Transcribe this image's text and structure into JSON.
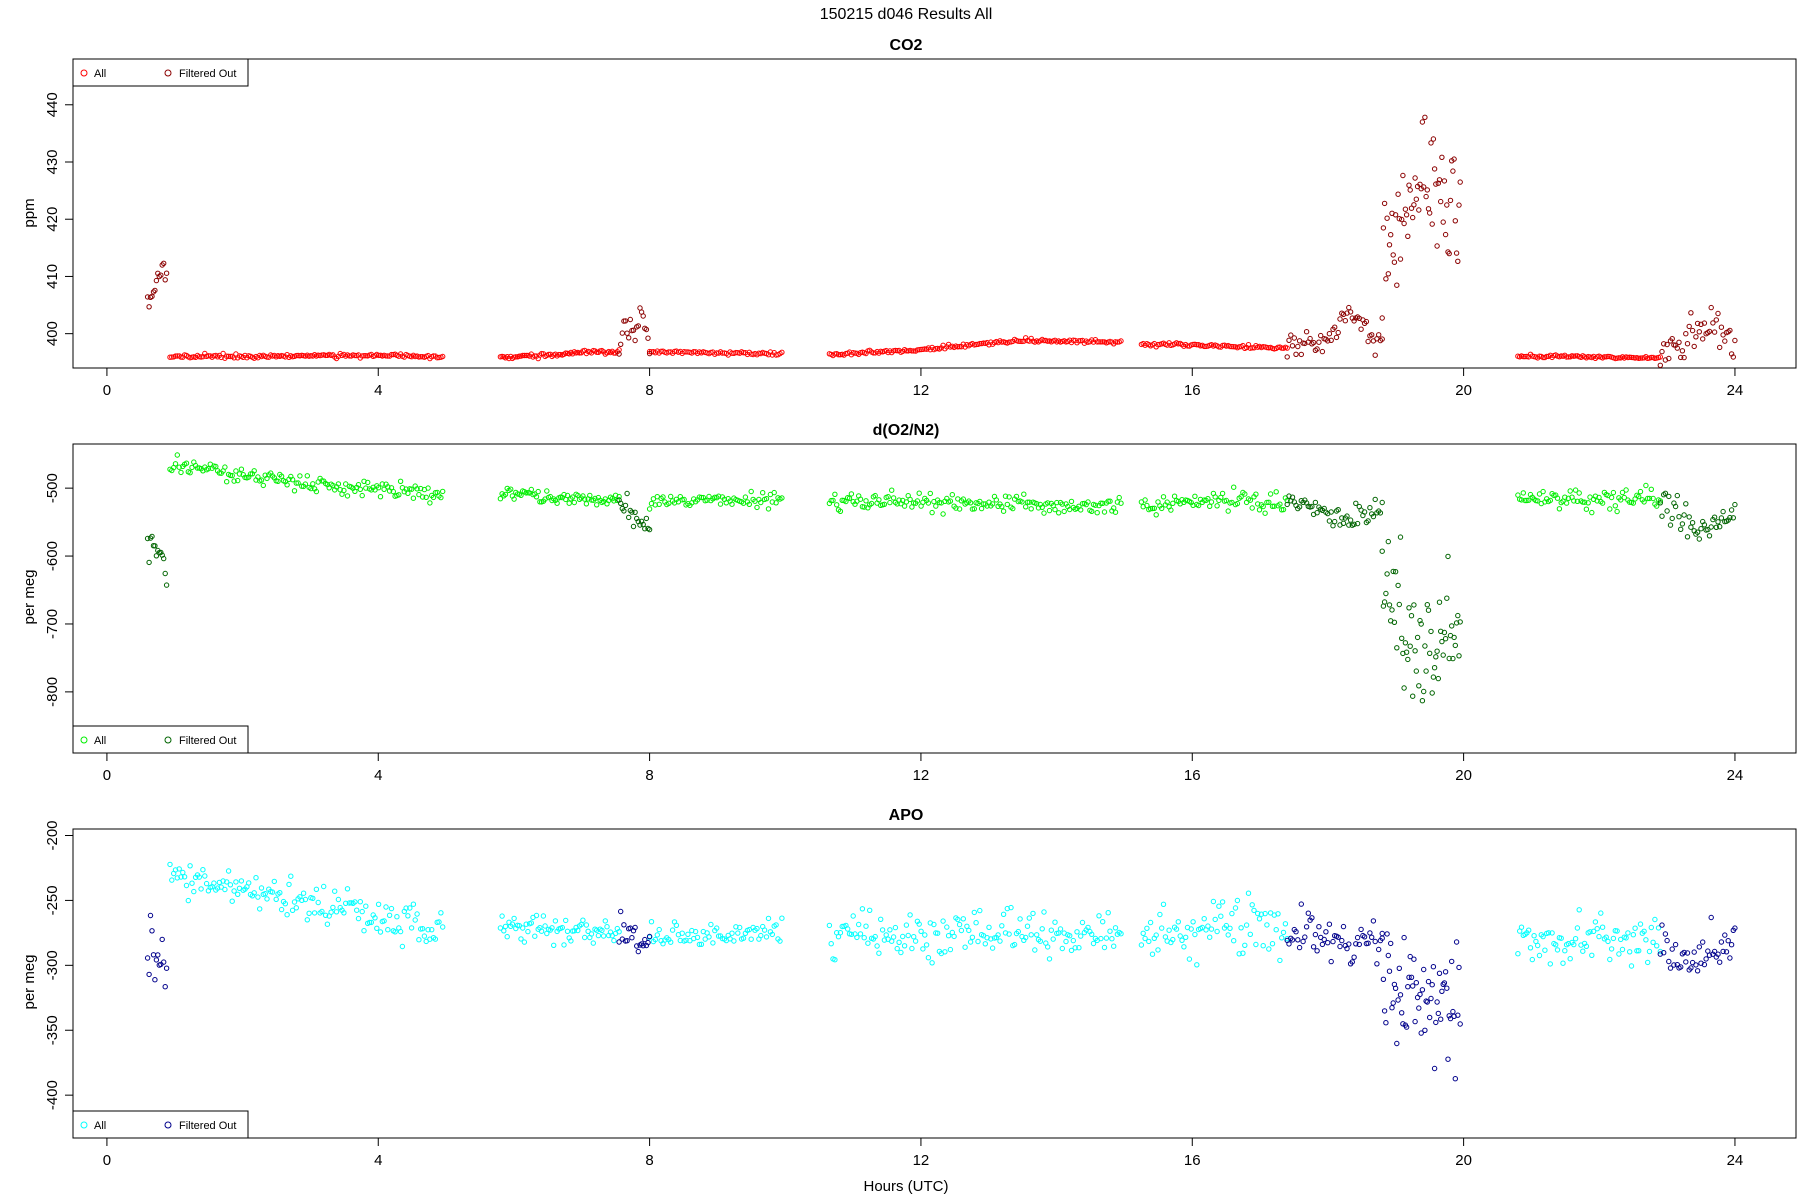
{
  "main_title": "150215   d046   Results All",
  "xlabel": "Hours (UTC)",
  "chart_data": [
    {
      "type": "scatter",
      "title": "CO2",
      "ylabel": "ppm",
      "xlim": [
        -0.5,
        24.9
      ],
      "ylim": [
        394,
        448
      ],
      "xticks": [
        0,
        4,
        8,
        12,
        16,
        20,
        24
      ],
      "yticks": [
        400,
        410,
        420,
        430,
        440
      ],
      "legend": {
        "position": "top-left",
        "all_label": "All",
        "filtered_label": "Filtered Out"
      },
      "colors": {
        "all": "#ff0000",
        "filtered": "#8b0000"
      },
      "series": [
        {
          "name": "All",
          "segments": [
            {
              "x0": 0.93,
              "x1": 4.95,
              "anchors": [
                [
                  0.93,
                  396
                ],
                [
                  2.5,
                  396.1
                ],
                [
                  4.0,
                  396.2
                ],
                [
                  4.95,
                  395.9
                ]
              ],
              "noise": 0.15,
              "n": 150
            },
            {
              "x0": 5.8,
              "x1": 7.55,
              "anchors": [
                [
                  5.8,
                  395.9
                ],
                [
                  6.5,
                  396.2
                ],
                [
                  7.0,
                  396.7
                ],
                [
                  7.55,
                  396.9
                ]
              ],
              "noise": 0.2,
              "n": 70
            },
            {
              "x0": 8.0,
              "x1": 9.95,
              "anchors": [
                [
                  8.0,
                  396.8
                ],
                [
                  9.0,
                  396.7
                ],
                [
                  9.95,
                  396.4
                ]
              ],
              "noise": 0.15,
              "n": 70
            },
            {
              "x0": 10.65,
              "x1": 14.95,
              "anchors": [
                [
                  10.65,
                  396.3
                ],
                [
                  12.0,
                  397.3
                ],
                [
                  13.5,
                  398.8
                ],
                [
                  14.95,
                  398.5
                ]
              ],
              "noise": 0.15,
              "n": 160
            },
            {
              "x0": 15.25,
              "x1": 17.4,
              "anchors": [
                [
                  15.25,
                  398.3
                ],
                [
                  16.5,
                  397.8
                ],
                [
                  17.4,
                  397.6
                ]
              ],
              "noise": 0.15,
              "n": 80
            },
            {
              "x0": 20.8,
              "x1": 22.9,
              "anchors": [
                [
                  20.8,
                  396.1
                ],
                [
                  22.0,
                  395.9
                ],
                [
                  22.9,
                  395.8
                ]
              ],
              "noise": 0.12,
              "n": 80
            }
          ]
        },
        {
          "name": "Filtered Out",
          "segments": [
            {
              "x0": 0.6,
              "x1": 0.88,
              "anchors": [
                [
                  0.6,
                  406
                ],
                [
                  0.75,
                  409
                ],
                [
                  0.88,
                  411
                ]
              ],
              "noise": 1.0,
              "n": 14
            },
            {
              "x0": 7.55,
              "x1": 8.0,
              "anchors": [
                [
                  7.55,
                  397
                ],
                [
                  7.7,
                  401
                ],
                [
                  7.9,
                  403
                ],
                [
                  8.0,
                  398
                ]
              ],
              "noise": 1.5,
              "n": 20
            },
            {
              "x0": 17.4,
              "x1": 18.8,
              "anchors": [
                [
                  17.4,
                  397.8
                ],
                [
                  17.9,
                  398.5
                ],
                [
                  18.3,
                  403
                ],
                [
                  18.8,
                  399
                ]
              ],
              "noise": 1.2,
              "n": 55
            },
            {
              "x0": 18.8,
              "x1": 19.95,
              "anchors": [
                [
                  18.8,
                  410
                ],
                [
                  19.1,
                  420
                ],
                [
                  19.4,
                  426
                ],
                [
                  19.95,
                  421
                ]
              ],
              "noise": 5.5,
              "n": 65
            },
            {
              "x0": 22.9,
              "x1": 24.0,
              "anchors": [
                [
                  22.9,
                  396.2
                ],
                [
                  23.3,
                  399.5
                ],
                [
                  23.6,
                  401
                ],
                [
                  24.0,
                  398.5
                ]
              ],
              "noise": 1.5,
              "n": 45
            }
          ]
        }
      ]
    },
    {
      "type": "scatter",
      "title": "d(O2/N2)",
      "ylabel": "per meg",
      "xlim": [
        -0.5,
        24.9
      ],
      "ylim": [
        -890,
        -435
      ],
      "xticks": [
        0,
        4,
        8,
        12,
        16,
        20,
        24
      ],
      "yticks": [
        -500,
        -600,
        -700,
        -800
      ],
      "legend": {
        "position": "bottom-left",
        "all_label": "All",
        "filtered_label": "Filtered Out"
      },
      "colors": {
        "all": "#00ee00",
        "filtered": "#006400"
      },
      "series": [
        {
          "name": "All",
          "segments": [
            {
              "x0": 0.93,
              "x1": 4.95,
              "anchors": [
                [
                  0.93,
                  -468
                ],
                [
                  1.5,
                  -473
                ],
                [
                  2.5,
                  -487
                ],
                [
                  3.5,
                  -497
                ],
                [
                  4.95,
                  -510
                ]
              ],
              "noise": 6,
              "n": 150
            },
            {
              "x0": 5.8,
              "x1": 7.55,
              "anchors": [
                [
                  5.8,
                  -508
                ],
                [
                  7.0,
                  -514
                ],
                [
                  7.55,
                  -517
                ]
              ],
              "noise": 5,
              "n": 70
            },
            {
              "x0": 8.0,
              "x1": 9.95,
              "anchors": [
                [
                  8.0,
                  -520
                ],
                [
                  9.0,
                  -518
                ],
                [
                  9.95,
                  -516
                ]
              ],
              "noise": 5,
              "n": 70
            },
            {
              "x0": 10.65,
              "x1": 14.95,
              "anchors": [
                [
                  10.65,
                  -520
                ],
                [
                  12.5,
                  -522
                ],
                [
                  14.95,
                  -528
                ]
              ],
              "noise": 7,
              "n": 160
            },
            {
              "x0": 15.25,
              "x1": 17.4,
              "anchors": [
                [
                  15.25,
                  -527
                ],
                [
                  16.5,
                  -517
                ],
                [
                  17.4,
                  -522
                ]
              ],
              "noise": 7,
              "n": 80
            },
            {
              "x0": 20.8,
              "x1": 22.9,
              "anchors": [
                [
                  20.8,
                  -515
                ],
                [
                  22.0,
                  -518
                ],
                [
                  22.9,
                  -512
                ]
              ],
              "noise": 7,
              "n": 80
            }
          ]
        },
        {
          "name": "Filtered Out",
          "segments": [
            {
              "x0": 0.6,
              "x1": 0.88,
              "anchors": [
                [
                  0.6,
                  -580
                ],
                [
                  0.75,
                  -600
                ],
                [
                  0.88,
                  -620
                ]
              ],
              "noise": 15,
              "n": 14
            },
            {
              "x0": 7.55,
              "x1": 8.0,
              "anchors": [
                [
                  7.55,
                  -520
                ],
                [
                  7.75,
                  -540
                ],
                [
                  8.0,
                  -560
                ]
              ],
              "noise": 10,
              "n": 20
            },
            {
              "x0": 17.4,
              "x1": 18.8,
              "anchors": [
                [
                  17.4,
                  -522
                ],
                [
                  17.9,
                  -532
                ],
                [
                  18.3,
                  -550
                ],
                [
                  18.8,
                  -530
                ]
              ],
              "noise": 9,
              "n": 55
            },
            {
              "x0": 18.8,
              "x1": 19.95,
              "anchors": [
                [
                  18.8,
                  -620
                ],
                [
                  19.1,
                  -700
                ],
                [
                  19.4,
                  -740
                ],
                [
                  19.95,
                  -710
                ]
              ],
              "noise": 45,
              "n": 65
            },
            {
              "x0": 22.9,
              "x1": 24.0,
              "anchors": [
                [
                  22.9,
                  -520
                ],
                [
                  23.3,
                  -550
                ],
                [
                  23.7,
                  -555
                ],
                [
                  24.0,
                  -535
                ]
              ],
              "noise": 12,
              "n": 45
            }
          ]
        }
      ]
    },
    {
      "type": "scatter",
      "title": "APO",
      "ylabel": "per meg",
      "xlim": [
        -0.5,
        24.9
      ],
      "ylim": [
        -433,
        -195
      ],
      "xticks": [
        0,
        4,
        8,
        12,
        16,
        20,
        24
      ],
      "yticks": [
        -200,
        -250,
        -300,
        -350,
        -400
      ],
      "legend": {
        "position": "bottom-left",
        "all_label": "All",
        "filtered_label": "Filtered Out"
      },
      "colors": {
        "all": "#00ffff",
        "filtered": "#00008b"
      },
      "series": [
        {
          "name": "All",
          "segments": [
            {
              "x0": 0.93,
              "x1": 4.95,
              "anchors": [
                [
                  0.93,
                  -228
                ],
                [
                  1.5,
                  -235
                ],
                [
                  2.5,
                  -248
                ],
                [
                  3.5,
                  -257
                ],
                [
                  4.95,
                  -272
                ]
              ],
              "noise": 7,
              "n": 150
            },
            {
              "x0": 5.8,
              "x1": 7.55,
              "anchors": [
                [
                  5.8,
                  -270
                ],
                [
                  7.0,
                  -272
                ],
                [
                  7.55,
                  -275
                ]
              ],
              "noise": 5,
              "n": 70
            },
            {
              "x0": 8.0,
              "x1": 9.95,
              "anchors": [
                [
                  8.0,
                  -277
                ],
                [
                  9.0,
                  -277
                ],
                [
                  9.95,
                  -273
                ]
              ],
              "noise": 5,
              "n": 70
            },
            {
              "x0": 10.65,
              "x1": 14.95,
              "anchors": [
                [
                  10.65,
                  -280
                ],
                [
                  12.5,
                  -275
                ],
                [
                  14.95,
                  -277
                ]
              ],
              "noise": 9,
              "n": 160
            },
            {
              "x0": 15.25,
              "x1": 17.4,
              "anchors": [
                [
                  15.25,
                  -280
                ],
                [
                  16.5,
                  -268
                ],
                [
                  17.4,
                  -272
                ]
              ],
              "noise": 10,
              "n": 80
            },
            {
              "x0": 20.8,
              "x1": 22.9,
              "anchors": [
                [
                  20.8,
                  -277
                ],
                [
                  22.0,
                  -280
                ],
                [
                  22.9,
                  -282
                ]
              ],
              "noise": 8,
              "n": 80
            }
          ]
        },
        {
          "name": "Filtered Out",
          "segments": [
            {
              "x0": 0.6,
              "x1": 0.88,
              "anchors": [
                [
                  0.6,
                  -285
                ],
                [
                  0.75,
                  -298
                ],
                [
                  0.88,
                  -310
                ]
              ],
              "noise": 10,
              "n": 14
            },
            {
              "x0": 7.55,
              "x1": 8.0,
              "anchors": [
                [
                  7.55,
                  -272
                ],
                [
                  7.8,
                  -278
                ],
                [
                  8.0,
                  -282
                ]
              ],
              "noise": 7,
              "n": 20
            },
            {
              "x0": 17.4,
              "x1": 18.8,
              "anchors": [
                [
                  17.4,
                  -273
                ],
                [
                  17.9,
                  -280
                ],
                [
                  18.3,
                  -287
                ],
                [
                  18.8,
                  -280
                ]
              ],
              "noise": 10,
              "n": 55
            },
            {
              "x0": 18.8,
              "x1": 19.95,
              "anchors": [
                [
                  18.8,
                  -305
                ],
                [
                  19.1,
                  -330
                ],
                [
                  19.4,
                  -335
                ],
                [
                  19.95,
                  -325
                ]
              ],
              "noise": 20,
              "n": 65
            },
            {
              "x0": 22.9,
              "x1": 24.0,
              "anchors": [
                [
                  22.9,
                  -288
                ],
                [
                  23.3,
                  -295
                ],
                [
                  23.7,
                  -292
                ],
                [
                  24.0,
                  -285
                ]
              ],
              "noise": 8,
              "n": 45
            }
          ]
        }
      ]
    }
  ]
}
